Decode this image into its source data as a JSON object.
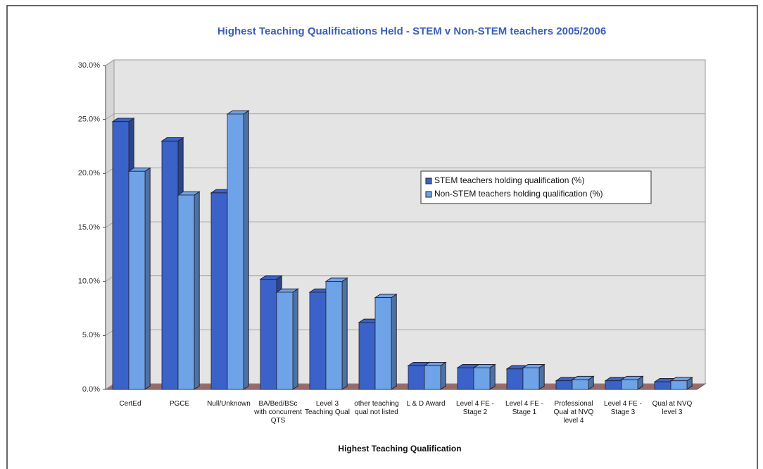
{
  "chart_data": {
    "type": "bar3d",
    "title": "Highest Teaching Qualifications Held - STEM v Non-STEM teachers 2005/2006",
    "x_label": "Highest Teaching Qualification",
    "categories": [
      "CertEd",
      "PGCE",
      "Null/Unknown",
      "BA/Bed/BSc with concurrent QTS",
      "Level 3 Teaching Qual",
      "other teaching qual not listed",
      "L & D Award",
      "Level 4 FE - Stage 2",
      "Level 4 FE - Stage 1",
      "Professional Qual at NVQ level 4",
      "Level 4 FE - Stage 3",
      "Qual at NVQ level 3"
    ],
    "series": [
      {
        "name": "STEM teachers holding qualification (%)",
        "color": "#3a62c8",
        "values": [
          24.8,
          23.0,
          18.2,
          10.2,
          9.0,
          6.2,
          2.2,
          2.0,
          1.9,
          0.8,
          0.8,
          0.7
        ]
      },
      {
        "name": "Non-STEM teachers holding qualification (%)",
        "color": "#6fa3e8",
        "values": [
          20.2,
          18.0,
          25.5,
          9.0,
          10.0,
          8.5,
          2.2,
          2.0,
          2.0,
          0.9,
          0.9,
          0.8
        ]
      }
    ],
    "ylim": [
      0,
      30
    ],
    "yticks": [
      {
        "value": 0,
        "label": "0.0%"
      },
      {
        "value": 5,
        "label": "5.0%"
      },
      {
        "value": 10,
        "label": "10.0%"
      },
      {
        "value": 15,
        "label": "15.0%"
      },
      {
        "value": 20,
        "label": "20.0%"
      },
      {
        "value": 25,
        "label": "25.0%"
      },
      {
        "value": 30,
        "label": "30.0%"
      }
    ],
    "grid": true
  }
}
